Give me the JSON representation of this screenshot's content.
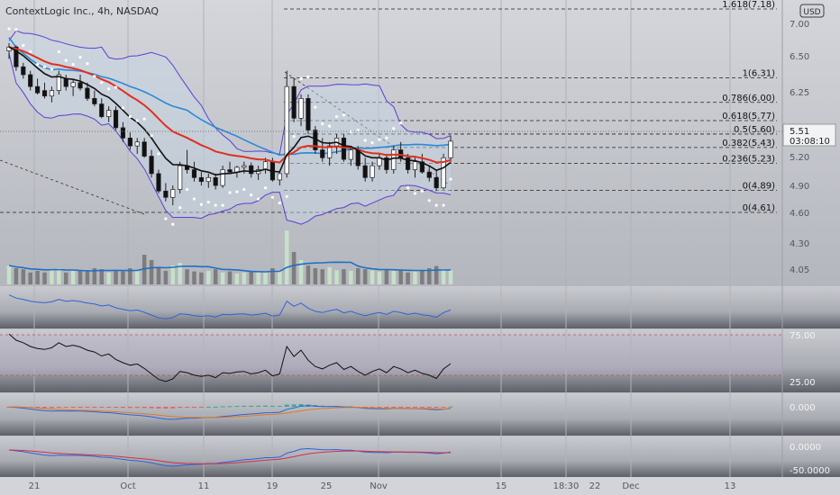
{
  "header": {
    "symbol_title": "ContextLogic Inc., 4h, NASDAQ",
    "currency_badge": "USD"
  },
  "price_scale": {
    "ticks": [
      "7.00",
      "6.50",
      "6.25",
      "5.20",
      "4.90",
      "4.60",
      "4.30",
      "4.05"
    ],
    "last_price": "5.51",
    "countdown": "03:08:10"
  },
  "time_axis": {
    "labels": [
      "21",
      "Oct",
      "11",
      "19",
      "25",
      "Nov",
      "15",
      "18:30",
      "22",
      "Dec",
      "13"
    ]
  },
  "fib_levels": [
    {
      "label": "1.618(7.18)",
      "value": 7.18
    },
    {
      "label": "1(6.31)",
      "value": 6.31
    },
    {
      "label": "0.786(6.00)",
      "value": 6.0
    },
    {
      "label": "0.618(5.77)",
      "value": 5.77
    },
    {
      "label": "0.5(5.60)",
      "value": 5.6
    },
    {
      "label": "0.382(5.43)",
      "value": 5.43
    },
    {
      "label": "0.236(5.23)",
      "value": 5.23
    },
    {
      "label": "0(4.89)",
      "value": 4.89
    },
    {
      "label": "0(4.61)",
      "value": 4.61
    }
  ],
  "indicator_scales": {
    "rsi_high": "75.00",
    "rsi_low": "25.00",
    "macd_zero": "0.000",
    "osc_zero": "0.0000",
    "osc_low": "-50.0000"
  },
  "colors": {
    "background": "#bdbfc6",
    "bullish_candle": "#ffffff",
    "bearish_candle": "#111111",
    "ema_fast": "#111111",
    "ema_slow": "#e0301e",
    "sma_blue": "#2a8ad6",
    "bollinger": "#5b3fd1",
    "volume_up": "#c8e6c9",
    "volume_down": "#777777",
    "macd_up": "#26a69a",
    "macd_down": "#ef5350"
  },
  "chart_data": {
    "type": "candlestick",
    "title": "ContextLogic Inc., 4h, NASDAQ",
    "ylim": [
      3.95,
      7.3
    ],
    "candles": [
      [
        6.65,
        6.75,
        6.55,
        6.7
      ],
      [
        6.7,
        6.72,
        6.4,
        6.45
      ],
      [
        6.45,
        6.5,
        6.3,
        6.35
      ],
      [
        6.35,
        6.4,
        6.15,
        6.2
      ],
      [
        6.2,
        6.3,
        6.1,
        6.12
      ],
      [
        6.15,
        6.25,
        6.05,
        6.08
      ],
      [
        6.08,
        6.2,
        6.0,
        6.15
      ],
      [
        6.15,
        6.4,
        6.1,
        6.35
      ],
      [
        6.3,
        6.35,
        6.15,
        6.2
      ],
      [
        6.2,
        6.28,
        6.08,
        6.25
      ],
      [
        6.25,
        6.35,
        6.15,
        6.18
      ],
      [
        6.18,
        6.25,
        6.02,
        6.05
      ],
      [
        6.05,
        6.15,
        5.95,
        5.98
      ],
      [
        5.98,
        6.05,
        5.8,
        5.82
      ],
      [
        5.82,
        5.95,
        5.75,
        5.9
      ],
      [
        5.9,
        5.95,
        5.65,
        5.68
      ],
      [
        5.68,
        5.75,
        5.5,
        5.55
      ],
      [
        5.55,
        5.62,
        5.4,
        5.45
      ],
      [
        5.45,
        5.55,
        5.35,
        5.5
      ],
      [
        5.5,
        5.55,
        5.3,
        5.32
      ],
      [
        5.32,
        5.4,
        5.05,
        5.1
      ],
      [
        5.1,
        5.15,
        4.85,
        4.88
      ],
      [
        4.88,
        4.98,
        4.75,
        4.8
      ],
      [
        4.8,
        4.95,
        4.7,
        4.9
      ],
      [
        4.9,
        5.25,
        4.85,
        5.2
      ],
      [
        5.2,
        5.4,
        5.1,
        5.15
      ],
      [
        5.15,
        5.25,
        5.0,
        5.05
      ],
      [
        5.05,
        5.12,
        4.95,
        5.0
      ],
      [
        5.0,
        5.1,
        4.92,
        5.05
      ],
      [
        5.05,
        5.1,
        4.9,
        4.95
      ],
      [
        4.95,
        5.2,
        4.92,
        5.15
      ],
      [
        5.15,
        5.25,
        5.1,
        5.12
      ],
      [
        5.12,
        5.2,
        5.05,
        5.18
      ],
      [
        5.18,
        5.25,
        5.1,
        5.2
      ],
      [
        5.2,
        5.24,
        5.05,
        5.1
      ],
      [
        5.1,
        5.2,
        5.02,
        5.15
      ],
      [
        5.15,
        5.3,
        5.1,
        5.25
      ],
      [
        5.25,
        5.3,
        5.0,
        5.02
      ],
      [
        5.02,
        5.12,
        4.95,
        5.1
      ],
      [
        5.1,
        6.4,
        5.05,
        6.2
      ],
      [
        6.2,
        6.3,
        5.75,
        5.8
      ],
      [
        5.8,
        6.1,
        5.7,
        6.05
      ],
      [
        6.05,
        6.1,
        5.6,
        5.65
      ],
      [
        5.65,
        5.7,
        5.35,
        5.4
      ],
      [
        5.4,
        5.55,
        5.25,
        5.3
      ],
      [
        5.3,
        5.5,
        5.2,
        5.45
      ],
      [
        5.45,
        5.6,
        5.35,
        5.55
      ],
      [
        5.55,
        5.6,
        5.25,
        5.28
      ],
      [
        5.28,
        5.45,
        5.2,
        5.4
      ],
      [
        5.4,
        5.45,
        5.15,
        5.2
      ],
      [
        5.2,
        5.3,
        5.0,
        5.05
      ],
      [
        5.05,
        5.25,
        5.0,
        5.2
      ],
      [
        5.2,
        5.35,
        5.15,
        5.3
      ],
      [
        5.3,
        5.35,
        5.1,
        5.15
      ],
      [
        5.15,
        5.45,
        5.1,
        5.4
      ],
      [
        5.4,
        5.5,
        5.25,
        5.3
      ],
      [
        5.3,
        5.35,
        5.1,
        5.15
      ],
      [
        5.15,
        5.3,
        5.05,
        5.25
      ],
      [
        5.25,
        5.35,
        5.1,
        5.12
      ],
      [
        5.12,
        5.2,
        5.0,
        5.05
      ],
      [
        5.05,
        5.15,
        4.88,
        4.92
      ],
      [
        4.92,
        5.35,
        4.9,
        5.3
      ],
      [
        5.3,
        5.58,
        5.25,
        5.51
      ]
    ],
    "volume": [
      0.35,
      0.3,
      0.28,
      0.22,
      0.25,
      0.22,
      0.28,
      0.3,
      0.22,
      0.25,
      0.26,
      0.24,
      0.3,
      0.28,
      0.22,
      0.25,
      0.24,
      0.3,
      0.25,
      0.55,
      0.45,
      0.3,
      0.25,
      0.35,
      0.4,
      0.28,
      0.24,
      0.22,
      0.25,
      0.28,
      0.22,
      0.24,
      0.2,
      0.22,
      0.25,
      0.24,
      0.22,
      0.3,
      0.26,
      1.0,
      0.6,
      0.45,
      0.35,
      0.3,
      0.28,
      0.32,
      0.26,
      0.28,
      0.25,
      0.3,
      0.28,
      0.26,
      0.24,
      0.28,
      0.25,
      0.26,
      0.22,
      0.24,
      0.26,
      0.3,
      0.34,
      0.28,
      0.26
    ]
  }
}
